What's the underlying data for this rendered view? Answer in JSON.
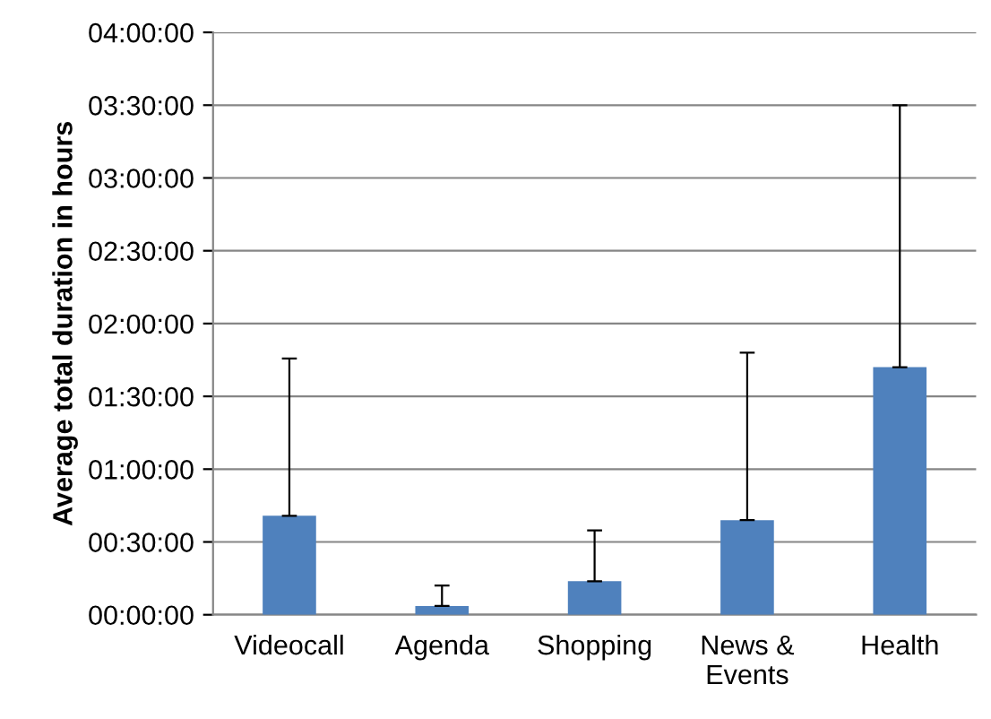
{
  "chart_data": {
    "type": "bar",
    "ylabel": "Average total duration in hours",
    "categories": [
      "Videocall",
      "Agenda",
      "Shopping",
      "News &\nEvents",
      "Health"
    ],
    "values": [
      0.68,
      0.06,
      0.23,
      0.65,
      1.7
    ],
    "errors": [
      [
        0.68,
        1.76
      ],
      [
        0.06,
        0.2
      ],
      [
        0.23,
        0.58
      ],
      [
        0.65,
        1.8
      ],
      [
        1.7,
        3.5
      ]
    ],
    "color": "#4f81bd",
    "ylim": [
      0,
      4
    ],
    "yticks": [
      {
        "value": 0,
        "label": "00:00:00"
      },
      {
        "value": 0.5,
        "label": "00:30:00"
      },
      {
        "value": 1,
        "label": "01:00:00"
      },
      {
        "value": 1.5,
        "label": "01:30:00"
      },
      {
        "value": 2,
        "label": "02:00:00"
      },
      {
        "value": 2.5,
        "label": "02:30:00"
      },
      {
        "value": 3,
        "label": "03:00:00"
      },
      {
        "value": 3.5,
        "label": "03:30:00"
      },
      {
        "value": 4,
        "label": "04:00:00"
      }
    ],
    "grid": "y"
  }
}
